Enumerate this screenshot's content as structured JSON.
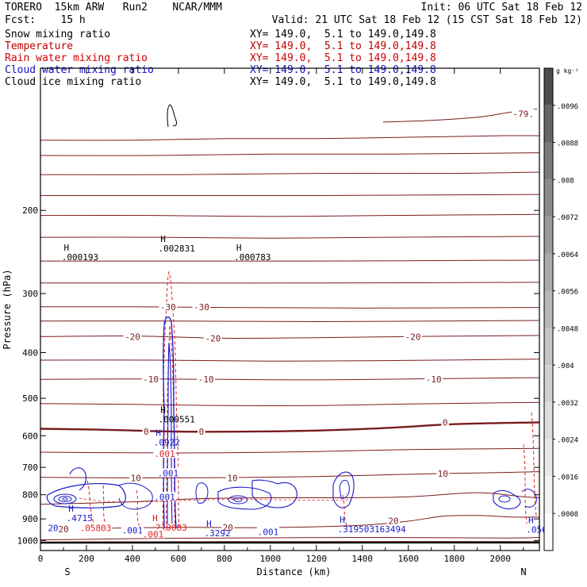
{
  "header": {
    "line1_left": "TORERO  15km ARW   Run2    NCAR/MMM",
    "line1_right": "Init: 06 UTC Sat 18 Feb 12",
    "line2_left": "Fcst:    15 h",
    "line2_right": "Valid: 21 UTC Sat 18 Feb 12 (15 CST Sat 18 Feb 12)"
  },
  "fields": [
    {
      "name": "Snow mixing ratio",
      "xy": "XY= 149.0,  5.1 to 149.0,149.8",
      "color": "#000000"
    },
    {
      "name": "Temperature",
      "xy": "XY= 149.0,  5.1 to 149.0,149.8",
      "color": "#c00000"
    },
    {
      "name": "Rain water mixing ratio",
      "xy": "XY= 149.0,  5.1 to 149.0,149.8",
      "color": "#d00000"
    },
    {
      "name": "Cloud water mixing ratio",
      "xy": "XY= 149.0,  5.1 to 149.0,149.8",
      "color": "#1010c0"
    },
    {
      "name": "Cloud ice mixing ratio",
      "xy": "XY= 149.0,  5.1 to 149.0,149.8",
      "color": "#000000"
    }
  ],
  "colors": {
    "temperature": "#7a1c1c",
    "rain": "#e02020",
    "cloud_water": "#1a1acc",
    "snow": "#000000",
    "frame": "#000000"
  },
  "chart_data": {
    "type": "contour",
    "xlabel": "Distance (km)",
    "ylabel": "Pressure (hPa)",
    "xlim": [
      0,
      2170
    ],
    "ylim": [
      1050,
      100
    ],
    "y_scale": "log",
    "x_ticks": [
      0,
      200,
      400,
      600,
      800,
      1000,
      1200,
      1400,
      1600,
      1800,
      2000
    ],
    "y_ticks": [
      200,
      300,
      400,
      500,
      600,
      700,
      800,
      900,
      1000
    ],
    "endpoints": {
      "left": "S",
      "right": "N"
    },
    "colorbar": {
      "unit": "g kg⁻¹",
      "ticks": [
        ".0008",
        ".0016",
        ".0024",
        ".0032",
        ".004",
        ".0048",
        ".0056",
        ".0064",
        ".0072",
        ".008",
        ".0088",
        ".0096"
      ],
      "label_values": [
        0.0008,
        0.0016,
        0.0024,
        0.0032,
        0.004,
        0.0048,
        0.0056,
        0.0064,
        0.0072,
        0.008,
        0.0088,
        0.0096
      ],
      "range": [
        0,
        0.0104
      ],
      "shades": [
        "#fbfbfb",
        "#f2f2f2",
        "#e8e8e8",
        "#dddddd",
        "#d1d1d1",
        "#c5c5c5",
        "#b8b8b8",
        "#aaaaaa",
        "#9b9b9b",
        "#8b8b8b",
        "#7a7a7a",
        "#666666",
        "#4d4d4d"
      ]
    },
    "temperature_labels": [
      {
        "text": "-79.",
        "x": 2100,
        "p": 125
      },
      {
        "text": "-30",
        "x": 555,
        "p": 320
      },
      {
        "text": "-30",
        "x": 700,
        "p": 320
      },
      {
        "text": "-20",
        "x": 400,
        "p": 370
      },
      {
        "text": "-20",
        "x": 750,
        "p": 373
      },
      {
        "text": "-20",
        "x": 1620,
        "p": 370
      },
      {
        "text": "-10",
        "x": 480,
        "p": 455
      },
      {
        "text": "-10",
        "x": 720,
        "p": 455
      },
      {
        "text": "-10",
        "x": 1710,
        "p": 455
      },
      {
        "text": "0",
        "x": 460,
        "p": 588
      },
      {
        "text": "0",
        "x": 700,
        "p": 588
      },
      {
        "text": "0",
        "x": 1760,
        "p": 562
      },
      {
        "text": "10",
        "x": 415,
        "p": 737
      },
      {
        "text": "10",
        "x": 835,
        "p": 737
      },
      {
        "text": "10",
        "x": 1750,
        "p": 722
      },
      {
        "text": "20",
        "x": 815,
        "p": 938
      },
      {
        "text": "20",
        "x": 1535,
        "p": 908
      },
      {
        "text": "20",
        "x": 100,
        "p": 946
      }
    ],
    "maxima_labels": [
      {
        "mark": "H",
        "value": ".000193",
        "x": 120,
        "p": 247,
        "color": "#000000"
      },
      {
        "mark": "H",
        "value": ".002831",
        "x": 540,
        "p": 237,
        "color": "#000000"
      },
      {
        "mark": "H",
        "value": ".000783",
        "x": 870,
        "p": 247,
        "color": "#000000"
      },
      {
        "mark": "H",
        "value": ".000551",
        "x": 540,
        "p": 545,
        "color": "#000000"
      },
      {
        "mark": "H",
        "value": ".0922",
        "x": 520,
        "p": 610,
        "color": "#1a1acc"
      },
      {
        "mark": "H",
        "value": ".4715",
        "x": 140,
        "p": 882,
        "color": "#1a1acc"
      },
      {
        "mark": "H",
        "value": ".219083",
        "x": 505,
        "p": 924,
        "color": "#e02020"
      },
      {
        "mark": "H",
        "value": ".3292",
        "x": 740,
        "p": 950,
        "color": "#1a1acc"
      },
      {
        "mark": "H",
        "value": ".319503163494",
        "x": 1320,
        "p": 931,
        "color": "#1a1acc"
      },
      {
        "mark": "H",
        "value": ".0565",
        "x": 2140,
        "p": 934,
        "color": "#1a1acc"
      }
    ],
    "contour_value_labels": [
      {
        "text": ".001",
        "x": 540,
        "p": 655,
        "color": "#e02020"
      },
      {
        "text": ".001",
        "x": 555,
        "p": 720,
        "color": "#1a1acc"
      },
      {
        "text": ".001",
        "x": 540,
        "p": 808,
        "color": "#1a1acc"
      },
      {
        "text": ".05803",
        "x": 240,
        "p": 940,
        "color": "#e02020"
      },
      {
        "text": ".001",
        "x": 400,
        "p": 952,
        "color": "#1a1acc"
      },
      {
        "text": ".001",
        "x": 490,
        "p": 970,
        "color": "#e02020"
      },
      {
        "text": ".001",
        "x": 990,
        "p": 958,
        "color": "#1a1acc"
      },
      {
        "text": "20",
        "x": 55,
        "p": 940,
        "color": "#1a1acc"
      }
    ],
    "temperature_contours": [
      {
        "level": -79,
        "points": [
          [
            1490,
            130
          ],
          [
            1700,
            129
          ],
          [
            1900,
            127
          ],
          [
            2040,
            124
          ],
          [
            2160,
            122
          ]
        ]
      },
      {
        "level": -70,
        "points": [
          [
            0,
            142
          ],
          [
            400,
            142
          ],
          [
            800,
            141
          ],
          [
            1200,
            141
          ],
          [
            1600,
            140
          ],
          [
            2000,
            139
          ],
          [
            2170,
            139
          ]
        ]
      },
      {
        "level": -65,
        "points": [
          [
            0,
            153
          ],
          [
            500,
            153
          ],
          [
            1000,
            152
          ],
          [
            1500,
            152
          ],
          [
            2170,
            151
          ]
        ]
      },
      {
        "level": -60,
        "points": [
          [
            0,
            168
          ],
          [
            600,
            168
          ],
          [
            1200,
            167
          ],
          [
            1800,
            167
          ],
          [
            2170,
            166
          ]
        ]
      },
      {
        "level": -55,
        "points": [
          [
            0,
            186
          ],
          [
            600,
            186
          ],
          [
            1200,
            186
          ],
          [
            2170,
            185
          ]
        ]
      },
      {
        "level": -50,
        "points": [
          [
            0,
            205
          ],
          [
            500,
            205
          ],
          [
            1000,
            206
          ],
          [
            1500,
            205
          ],
          [
            2170,
            204
          ]
        ]
      },
      {
        "level": -45,
        "points": [
          [
            0,
            228
          ],
          [
            500,
            228
          ],
          [
            1000,
            229
          ],
          [
            1500,
            228
          ],
          [
            2170,
            227
          ]
        ]
      },
      {
        "level": -40,
        "points": [
          [
            0,
            256
          ],
          [
            600,
            256
          ],
          [
            1200,
            256
          ],
          [
            2170,
            255
          ]
        ]
      },
      {
        "level": -35,
        "points": [
          [
            0,
            285
          ],
          [
            600,
            285
          ],
          [
            1200,
            285
          ],
          [
            2170,
            284
          ]
        ]
      },
      {
        "level": -30,
        "points": [
          [
            0,
            320
          ],
          [
            400,
            320
          ],
          [
            800,
            321
          ],
          [
            1400,
            322
          ],
          [
            2170,
            321
          ]
        ]
      },
      {
        "level": -25,
        "points": [
          [
            0,
            343
          ],
          [
            600,
            343
          ],
          [
            1200,
            344
          ],
          [
            2170,
            342
          ]
        ]
      },
      {
        "level": -20,
        "points": [
          [
            0,
            370
          ],
          [
            400,
            369
          ],
          [
            800,
            373
          ],
          [
            1200,
            372
          ],
          [
            1600,
            370
          ],
          [
            2170,
            368
          ]
        ]
      },
      {
        "level": -15,
        "points": [
          [
            0,
            415
          ],
          [
            500,
            415
          ],
          [
            1000,
            417
          ],
          [
            1500,
            416
          ],
          [
            2170,
            413
          ]
        ]
      },
      {
        "level": -10,
        "points": [
          [
            0,
            456
          ],
          [
            400,
            455
          ],
          [
            800,
            456
          ],
          [
            1200,
            457
          ],
          [
            1600,
            455
          ],
          [
            2170,
            452
          ]
        ]
      },
      {
        "level": -5,
        "points": [
          [
            0,
            513
          ],
          [
            400,
            515
          ],
          [
            800,
            518
          ],
          [
            1200,
            518
          ],
          [
            1600,
            514
          ],
          [
            2170,
            510
          ]
        ]
      },
      {
        "level": 0,
        "points": [
          [
            0,
            580
          ],
          [
            300,
            583
          ],
          [
            600,
            588
          ],
          [
            900,
            588
          ],
          [
            1200,
            585
          ],
          [
            1500,
            578
          ],
          [
            1800,
            567
          ],
          [
            2170,
            562
          ]
        ]
      },
      {
        "level": 5,
        "points": [
          [
            0,
            650
          ],
          [
            400,
            652
          ],
          [
            800,
            652
          ],
          [
            1200,
            648
          ],
          [
            1600,
            642
          ],
          [
            2170,
            638
          ]
        ]
      },
      {
        "level": 10,
        "points": [
          [
            0,
            735
          ],
          [
            400,
            737
          ],
          [
            800,
            736
          ],
          [
            1200,
            732
          ],
          [
            1600,
            724
          ],
          [
            2000,
            718
          ],
          [
            2170,
            715
          ]
        ]
      },
      {
        "level": 15,
        "points": [
          [
            0,
            838
          ],
          [
            400,
            828
          ],
          [
            700,
            815
          ],
          [
            1000,
            812
          ],
          [
            1300,
            812
          ],
          [
            1600,
            808
          ],
          [
            1900,
            792
          ],
          [
            2100,
            808
          ],
          [
            2170,
            812
          ]
        ]
      },
      {
        "level": 20,
        "points": [
          [
            200,
            943
          ],
          [
            600,
            938
          ],
          [
            1000,
            939
          ],
          [
            1400,
            928
          ],
          [
            1600,
            910
          ],
          [
            1750,
            888
          ],
          [
            1900,
            885
          ],
          [
            2050,
            892
          ],
          [
            2170,
            892
          ]
        ]
      },
      {
        "level": 25,
        "points": [
          [
            0,
            997
          ],
          [
            500,
            990
          ],
          [
            1000,
            987
          ],
          [
            1500,
            985
          ],
          [
            2000,
            988
          ],
          [
            2170,
            985
          ]
        ]
      },
      {
        "level": 30,
        "points": [
          [
            0,
            1007
          ],
          [
            600,
            1006
          ],
          [
            1200,
            1005
          ],
          [
            2170,
            1005
          ]
        ]
      },
      {
        "level": 35,
        "points": [
          [
            0,
            1011
          ],
          [
            2170,
            1010
          ]
        ]
      }
    ]
  }
}
